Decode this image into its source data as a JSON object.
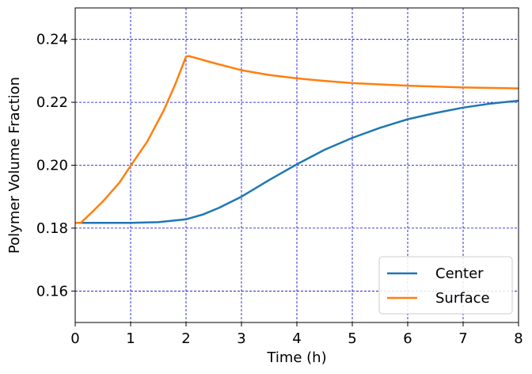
{
  "chart_data": {
    "type": "line",
    "xlabel": "Time (h)",
    "ylabel": "Polymer Volume Fraction",
    "xlim": [
      0,
      8
    ],
    "ylim": [
      0.15,
      0.25
    ],
    "xticks": [
      0,
      1,
      2,
      3,
      4,
      5,
      6,
      7,
      8
    ],
    "yticks": [
      0.16,
      0.18,
      0.2,
      0.22,
      0.24
    ],
    "ytick_labels": [
      "0.16",
      "0.18",
      "0.20",
      "0.22",
      "0.24"
    ],
    "grid": true,
    "grid_color": "#0000cc",
    "legend_position": "bottom-right",
    "series": [
      {
        "name": "Center",
        "color": "#1f77b4",
        "x": [
          0,
          0.5,
          1.0,
          1.5,
          2.0,
          2.3,
          2.6,
          3.0,
          3.5,
          4.0,
          4.5,
          5.0,
          5.5,
          6.0,
          6.5,
          7.0,
          7.5,
          8.0
        ],
        "y": [
          0.1817,
          0.1817,
          0.1817,
          0.1819,
          0.1828,
          0.1843,
          0.1865,
          0.19,
          0.1953,
          0.2003,
          0.2049,
          0.2087,
          0.2119,
          0.2146,
          0.2166,
          0.2183,
          0.2196,
          0.2205
        ]
      },
      {
        "name": "Surface",
        "color": "#ff7f0e",
        "x": [
          0,
          0.1,
          0.3,
          0.5,
          0.8,
          1.0,
          1.3,
          1.6,
          1.8,
          2.0,
          2.05,
          2.5,
          3.0,
          3.5,
          4.0,
          4.5,
          5.0,
          6.0,
          7.0,
          8.0
        ],
        "y": [
          0.1817,
          0.1817,
          0.185,
          0.1885,
          0.1945,
          0.1998,
          0.2075,
          0.2175,
          0.2255,
          0.2345,
          0.2347,
          0.2325,
          0.2302,
          0.2287,
          0.2276,
          0.2268,
          0.2261,
          0.2253,
          0.2247,
          0.2244
        ]
      }
    ]
  }
}
